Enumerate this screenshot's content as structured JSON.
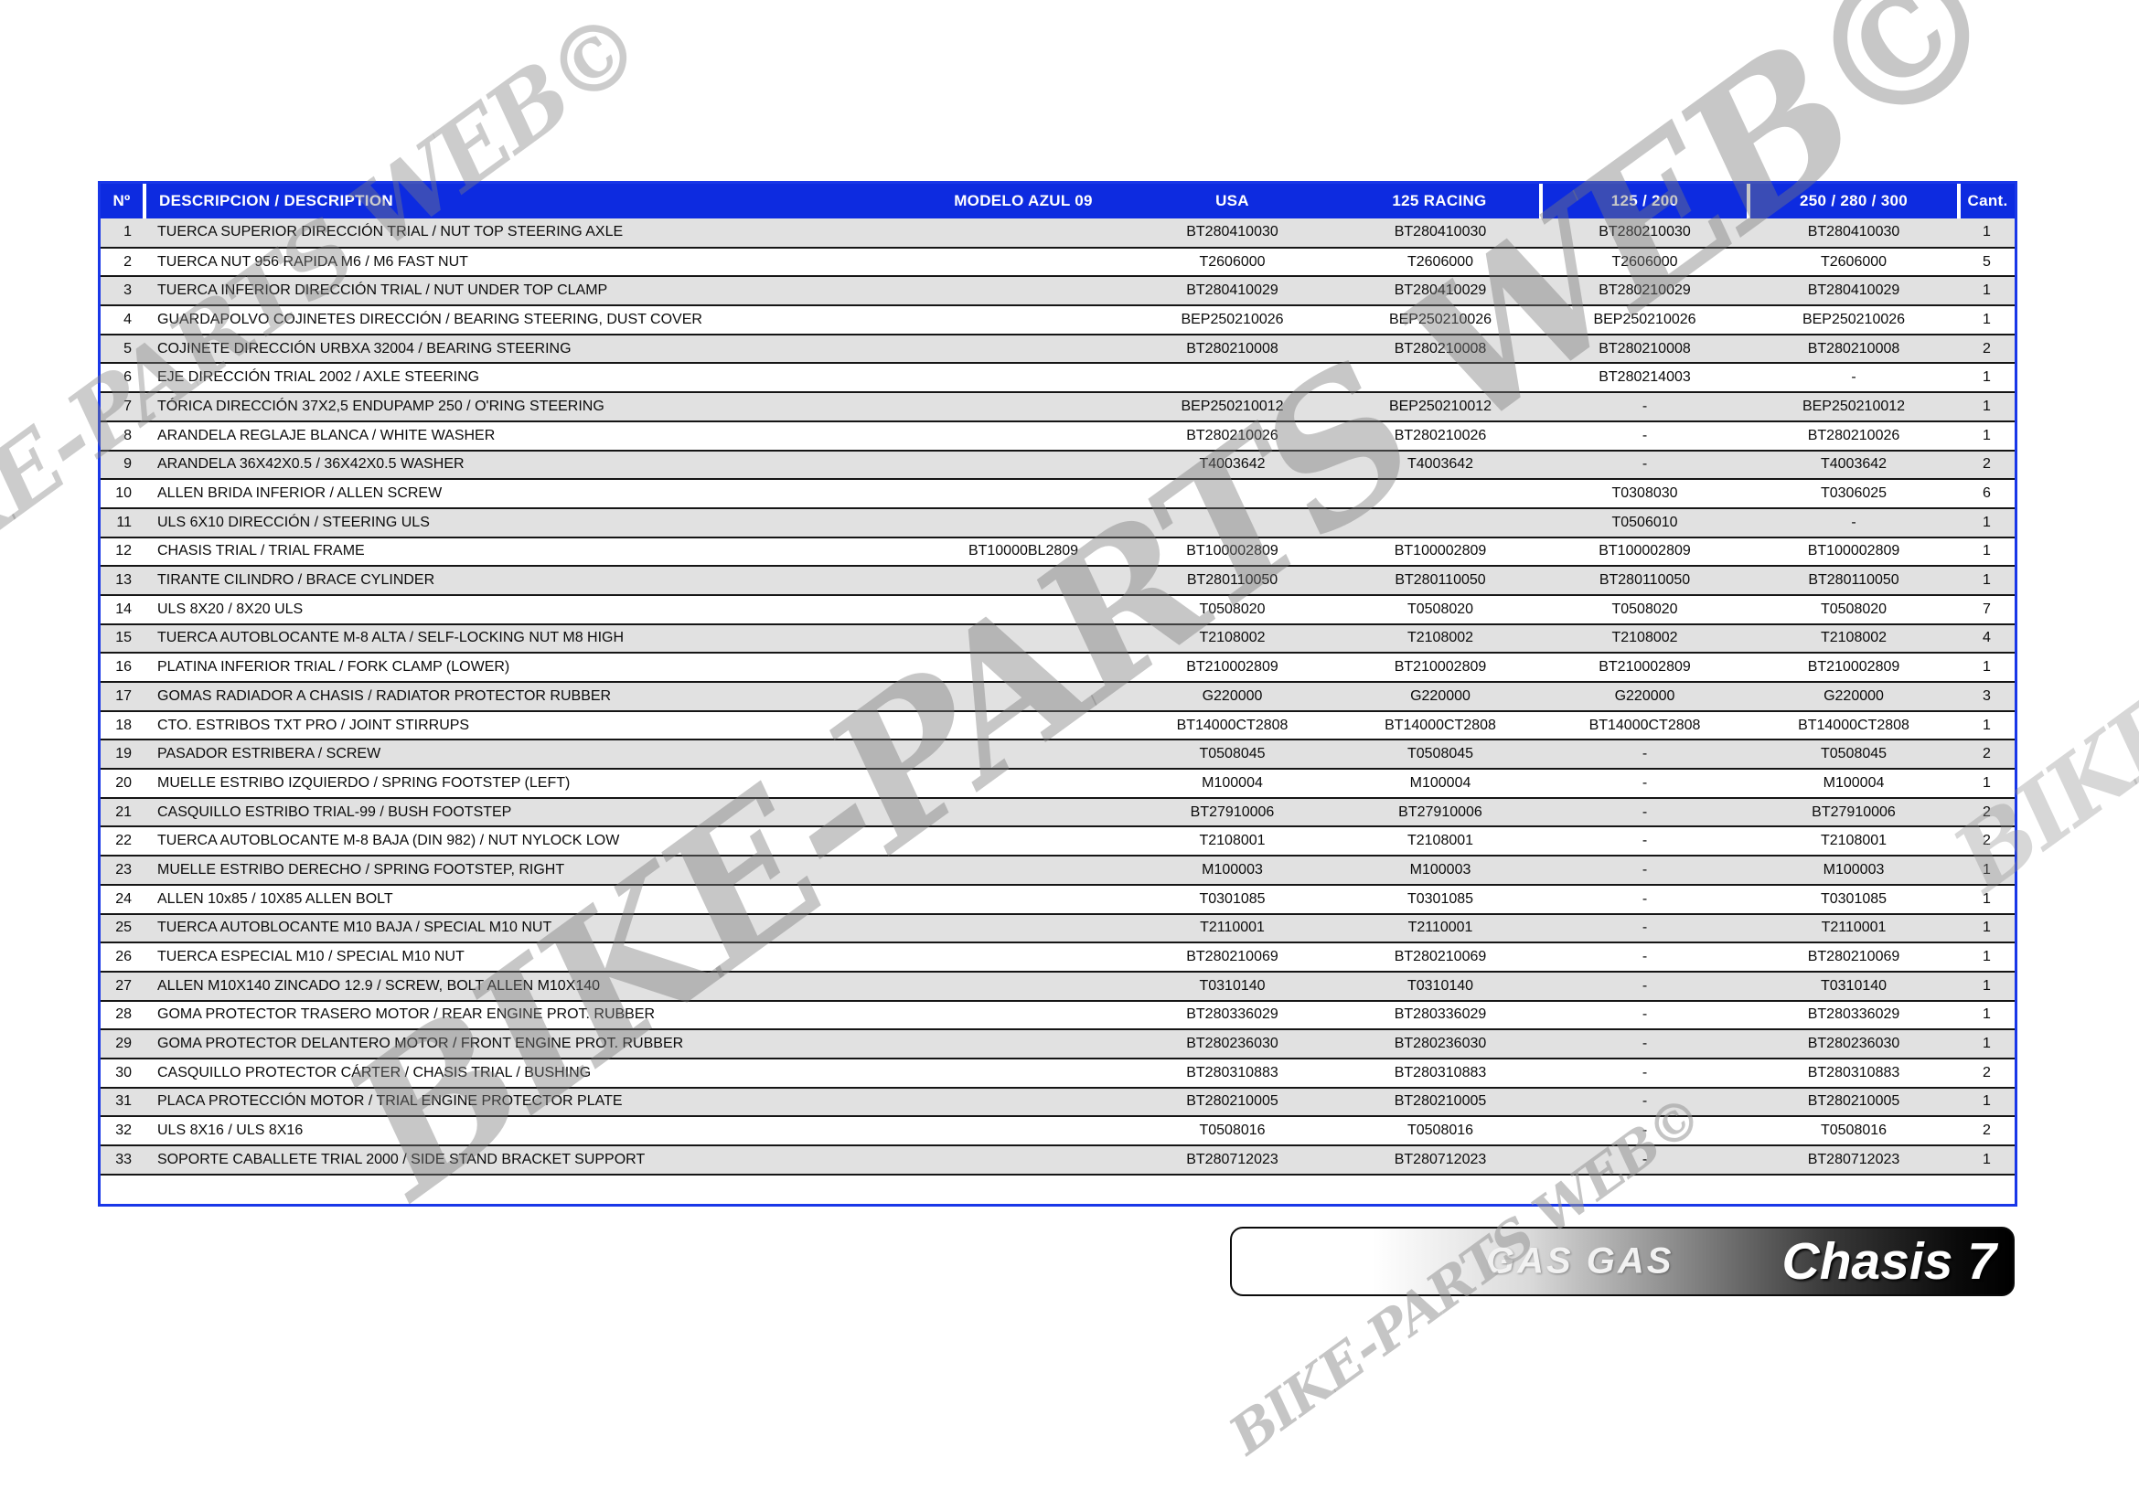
{
  "watermark": {
    "text": "BIKE-PARTS WEB©"
  },
  "footer": {
    "brand": "GAS GAS",
    "section": "Chasis 7"
  },
  "colors": {
    "header_bg": "#0D2BE0",
    "border_blue": "#1937E8",
    "row_alt": "#E1E1E1",
    "row_line": "#151515"
  },
  "table": {
    "headers": [
      "Nº",
      "DESCRIPCION / DESCRIPTION",
      "MODELO AZUL 09",
      "USA",
      "125 RACING",
      "125 / 200",
      "250 / 280 / 300",
      "Cant."
    ],
    "rows": [
      {
        "num": "1",
        "desc": "TUERCA SUPERIOR DIRECCIÓN TRIAL / NUT TOP STEERING AXLE",
        "modelo": "",
        "usa": "BT280410030",
        "racing": "BT280410030",
        "m125_200": "BT280210030",
        "m250_280_300": "BT280410030",
        "cant": "1"
      },
      {
        "num": "2",
        "desc": "TUERCA NUT 956 RAPIDA M6 / M6 FAST NUT",
        "modelo": "",
        "usa": "T2606000",
        "racing": "T2606000",
        "m125_200": "T2606000",
        "m250_280_300": "T2606000",
        "cant": "5"
      },
      {
        "num": "3",
        "desc": "TUERCA INFERIOR DIRECCIÓN TRIAL / NUT UNDER TOP CLAMP",
        "modelo": "",
        "usa": "BT280410029",
        "racing": "BT280410029",
        "m125_200": "BT280210029",
        "m250_280_300": "BT280410029",
        "cant": "1"
      },
      {
        "num": "4",
        "desc": "GUARDAPOLVO COJINETES DIRECCIÓN / BEARING STEERING, DUST COVER",
        "modelo": "",
        "usa": "BEP250210026",
        "racing": "BEP250210026",
        "m125_200": "BEP250210026",
        "m250_280_300": "BEP250210026",
        "cant": "1"
      },
      {
        "num": "5",
        "desc": "COJINETE DIRECCIÓN URBXA 32004 / BEARING STEERING",
        "modelo": "",
        "usa": "BT280210008",
        "racing": "BT280210008",
        "m125_200": "BT280210008",
        "m250_280_300": "BT280210008",
        "cant": "2"
      },
      {
        "num": "6",
        "desc": "EJE DIRECCIÓN TRIAL 2002 / AXLE STEERING",
        "modelo": "",
        "usa": "",
        "racing": "",
        "m125_200": "BT280214003",
        "m250_280_300": "-",
        "cant": "1"
      },
      {
        "num": "7",
        "desc": "TÓRICA DIRECCIÓN 37X2,5 ENDUPAMP 250 / O'RING STEERING",
        "modelo": "",
        "usa": "BEP250210012",
        "racing": "BEP250210012",
        "m125_200": "-",
        "m250_280_300": "BEP250210012",
        "cant": "1"
      },
      {
        "num": "8",
        "desc": "ARANDELA REGLAJE BLANCA / WHITE WASHER",
        "modelo": "",
        "usa": "BT280210026",
        "racing": "BT280210026",
        "m125_200": "-",
        "m250_280_300": "BT280210026",
        "cant": "1"
      },
      {
        "num": "9",
        "desc": "ARANDELA 36X42X0.5 / 36X42X0.5 WASHER",
        "modelo": "",
        "usa": "T4003642",
        "racing": "T4003642",
        "m125_200": "-",
        "m250_280_300": "T4003642",
        "cant": "2"
      },
      {
        "num": "10",
        "desc": "ALLEN BRIDA INFERIOR / ALLEN SCREW",
        "modelo": "",
        "usa": "",
        "racing": "",
        "m125_200": "T0308030",
        "m250_280_300": "T0306025",
        "cant": "6"
      },
      {
        "num": "11",
        "desc": "ULS 6X10 DIRECCIÓN / STEERING ULS",
        "modelo": "",
        "usa": "",
        "racing": "",
        "m125_200": "T0506010",
        "m250_280_300": "-",
        "cant": "1"
      },
      {
        "num": "12",
        "desc": "CHASIS TRIAL  /  TRIAL FRAME",
        "modelo": "BT10000BL2809",
        "usa": "BT100002809",
        "racing": "BT100002809",
        "m125_200": "BT100002809",
        "m250_280_300": "BT100002809",
        "cant": "1"
      },
      {
        "num": "13",
        "desc": "TIRANTE CILINDRO / BRACE CYLINDER",
        "modelo": "",
        "usa": "BT280110050",
        "racing": "BT280110050",
        "m125_200": "BT280110050",
        "m250_280_300": "BT280110050",
        "cant": "1"
      },
      {
        "num": "14",
        "desc": "ULS 8X20 / 8X20 ULS",
        "modelo": "",
        "usa": "T0508020",
        "racing": "T0508020",
        "m125_200": "T0508020",
        "m250_280_300": "T0508020",
        "cant": "7"
      },
      {
        "num": "15",
        "desc": "TUERCA AUTOBLOCANTE M-8 ALTA / SELF-LOCKING NUT M8 HIGH",
        "modelo": "",
        "usa": "T2108002",
        "racing": "T2108002",
        "m125_200": "T2108002",
        "m250_280_300": "T2108002",
        "cant": "4"
      },
      {
        "num": "16",
        "desc": "PLATINA INFERIOR TRIAL / FORK CLAMP (LOWER)",
        "modelo": "",
        "usa": "BT210002809",
        "racing": "BT210002809",
        "m125_200": "BT210002809",
        "m250_280_300": "BT210002809",
        "cant": "1"
      },
      {
        "num": "17",
        "desc": "GOMAS RADIADOR A CHASIS / RADIATOR PROTECTOR RUBBER",
        "modelo": "",
        "usa": "G220000",
        "racing": "G220000",
        "m125_200": "G220000",
        "m250_280_300": "G220000",
        "cant": "3"
      },
      {
        "num": "18",
        "desc": "CTO. ESTRIBOS TXT PRO / JOINT STIRRUPS",
        "modelo": "",
        "usa": "BT14000CT2808",
        "racing": "BT14000CT2808",
        "m125_200": "BT14000CT2808",
        "m250_280_300": "BT14000CT2808",
        "cant": "1"
      },
      {
        "num": "19",
        "desc": "PASADOR ESTRIBERA /  SCREW",
        "modelo": "",
        "usa": "T0508045",
        "racing": "T0508045",
        "m125_200": "-",
        "m250_280_300": "T0508045",
        "cant": "2"
      },
      {
        "num": "20",
        "desc": "MUELLE ESTRIBO IZQUIERDO / SPRING FOOTSTEP (LEFT)",
        "modelo": "",
        "usa": "M100004",
        "racing": "M100004",
        "m125_200": "-",
        "m250_280_300": "M100004",
        "cant": "1"
      },
      {
        "num": "21",
        "desc": "CASQUILLO ESTRIBO TRIAL-99 / BUSH FOOTSTEP",
        "modelo": "",
        "usa": "BT27910006",
        "racing": "BT27910006",
        "m125_200": "-",
        "m250_280_300": "BT27910006",
        "cant": "2"
      },
      {
        "num": "22",
        "desc": "TUERCA AUTOBLOCANTE M-8 BAJA (DIN 982) / NUT NYLOCK LOW",
        "modelo": "",
        "usa": "T2108001",
        "racing": "T2108001",
        "m125_200": "-",
        "m250_280_300": "T2108001",
        "cant": "2"
      },
      {
        "num": "23",
        "desc": "MUELLE ESTRIBO DERECHO / SPRING FOOTSTEP, RIGHT",
        "modelo": "",
        "usa": "M100003",
        "racing": "M100003",
        "m125_200": "-",
        "m250_280_300": "M100003",
        "cant": "1"
      },
      {
        "num": "24",
        "desc": "ALLEN 10x85 / 10X85 ALLEN BOLT",
        "modelo": "",
        "usa": "T0301085",
        "racing": "T0301085",
        "m125_200": "-",
        "m250_280_300": "T0301085",
        "cant": "1"
      },
      {
        "num": "25",
        "desc": "TUERCA AUTOBLOCANTE M10 BAJA / SPECIAL M10 NUT",
        "modelo": "",
        "usa": "T2110001",
        "racing": "T2110001",
        "m125_200": "-",
        "m250_280_300": "T2110001",
        "cant": "1"
      },
      {
        "num": "26",
        "desc": "TUERCA ESPECIAL M10 / SPECIAL M10 NUT",
        "modelo": "",
        "usa": "BT280210069",
        "racing": "BT280210069",
        "m125_200": "-",
        "m250_280_300": "BT280210069",
        "cant": "1"
      },
      {
        "num": "27",
        "desc": "ALLEN M10X140 ZINCADO 12.9 / SCREW, BOLT ALLEN M10X140",
        "modelo": "",
        "usa": "T0310140",
        "racing": "T0310140",
        "m125_200": "-",
        "m250_280_300": "T0310140",
        "cant": "1"
      },
      {
        "num": "28",
        "desc": "GOMA PROTECTOR TRASERO MOTOR / REAR ENGINE PROT. RUBBER",
        "modelo": "",
        "usa": "BT280336029",
        "racing": "BT280336029",
        "m125_200": "-",
        "m250_280_300": "BT280336029",
        "cant": "1"
      },
      {
        "num": "29",
        "desc": "GOMA PROTECTOR DELANTERO MOTOR / FRONT ENGINE PROT. RUBBER",
        "modelo": "",
        "usa": "BT280236030",
        "racing": "BT280236030",
        "m125_200": "-",
        "m250_280_300": "BT280236030",
        "cant": "1"
      },
      {
        "num": "30",
        "desc": "CASQUILLO PROTECTOR CÁRTER / CHASIS TRIAL / BUSHING",
        "modelo": "",
        "usa": "BT280310883",
        "racing": "BT280310883",
        "m125_200": "-",
        "m250_280_300": "BT280310883",
        "cant": "2"
      },
      {
        "num": "31",
        "desc": "PLACA PROTECCIÓN MOTOR / TRIAL ENGINE PROTECTOR PLATE",
        "modelo": "",
        "usa": "BT280210005",
        "racing": "BT280210005",
        "m125_200": "-",
        "m250_280_300": "BT280210005",
        "cant": "1"
      },
      {
        "num": "32",
        "desc": "ULS 8X16 / ULS 8X16",
        "modelo": "",
        "usa": "T0508016",
        "racing": "T0508016",
        "m125_200": "-",
        "m250_280_300": "T0508016",
        "cant": "2"
      },
      {
        "num": "33",
        "desc": "SOPORTE CABALLETE TRIAL 2000 / SIDE STAND BRACKET SUPPORT",
        "modelo": "",
        "usa": "BT280712023",
        "racing": "BT280712023",
        "m125_200": "-",
        "m250_280_300": "BT280712023",
        "cant": "1"
      }
    ]
  }
}
